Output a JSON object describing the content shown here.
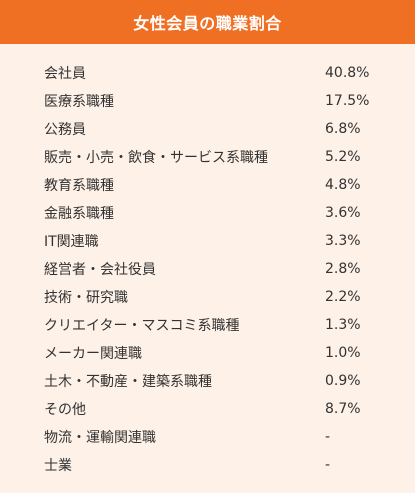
{
  "title": "女性会員の職業割合",
  "rows": [
    {
      "label": "会社員",
      "value": "40.8%"
    },
    {
      "label": "医療系職種",
      "value": "17.5%"
    },
    {
      "label": "公務員",
      "value": "6.8%"
    },
    {
      "label": "販売・小売・飲食・サービス系職種",
      "value": "5.2%"
    },
    {
      "label": "教育系職種",
      "value": "4.8%"
    },
    {
      "label": "金融系職種",
      "value": "3.6%"
    },
    {
      "label": "IT関連職",
      "value": "3.3%"
    },
    {
      "label": "経営者・会社役員",
      "value": "2.8%"
    },
    {
      "label": "技術・研究職",
      "value": "2.2%"
    },
    {
      "label": "クリエイター・マスコミ系職種",
      "value": "1.3%"
    },
    {
      "label": "メーカー関連職",
      "value": "1.0%"
    },
    {
      "label": "土木・不動産・建築系職種",
      "value": "0.9%"
    },
    {
      "label": "その他",
      "value": "8.7%"
    },
    {
      "label": "物流・運輸関連職",
      "value": "-"
    },
    {
      "label": "士業",
      "value": "-"
    }
  ]
}
